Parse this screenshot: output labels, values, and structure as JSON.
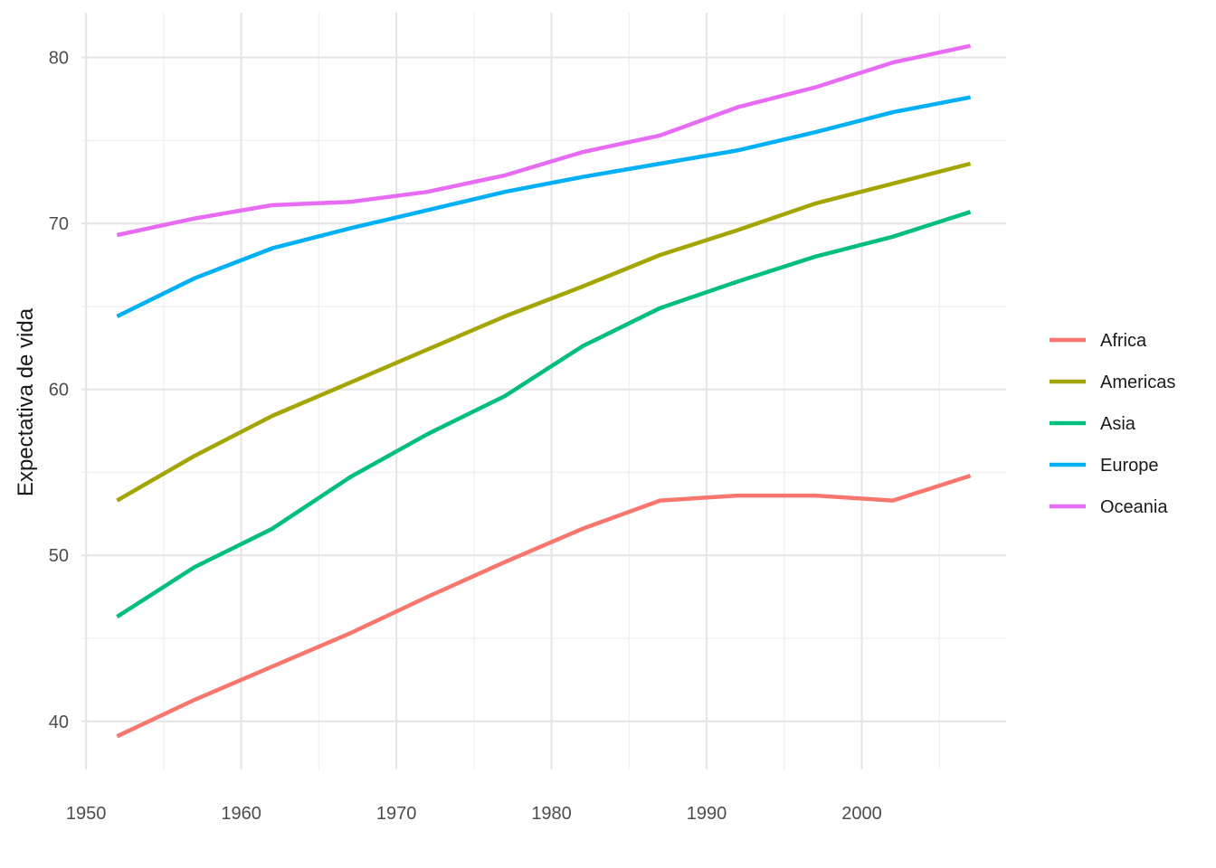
{
  "chart_data": {
    "type": "line",
    "title": "",
    "xlabel": "",
    "ylabel": "Expectativa de vida",
    "x": [
      1952,
      1957,
      1962,
      1967,
      1972,
      1977,
      1982,
      1987,
      1992,
      1997,
      2002,
      2007
    ],
    "xlim": [
      1949.7,
      2009.3
    ],
    "ylim": [
      37.1,
      82.7
    ],
    "x_ticks": [
      1950,
      1960,
      1970,
      1980,
      1990,
      2000
    ],
    "x_tick_labels": [
      "1950",
      "1960",
      "1970",
      "1980",
      "1990",
      "2000"
    ],
    "y_ticks": [
      40,
      50,
      60,
      70,
      80
    ],
    "y_tick_labels": [
      "40",
      "50",
      "60",
      "70",
      "80"
    ],
    "grid": true,
    "legend_position": "right",
    "series": [
      {
        "name": "Africa",
        "color": "#F8766D",
        "values": [
          39.1,
          41.3,
          43.3,
          45.3,
          47.5,
          49.6,
          51.6,
          53.3,
          53.6,
          53.6,
          53.3,
          54.8
        ]
      },
      {
        "name": "Americas",
        "color": "#A3A500",
        "values": [
          53.3,
          56.0,
          58.4,
          60.4,
          62.4,
          64.4,
          66.2,
          68.1,
          69.6,
          71.2,
          72.4,
          73.6
        ]
      },
      {
        "name": "Asia",
        "color": "#00BF7D",
        "values": [
          46.3,
          49.3,
          51.6,
          54.7,
          57.3,
          59.6,
          62.6,
          64.9,
          66.5,
          68.0,
          69.2,
          70.7
        ]
      },
      {
        "name": "Europe",
        "color": "#00B0F6",
        "values": [
          64.4,
          66.7,
          68.5,
          69.7,
          70.8,
          71.9,
          72.8,
          73.6,
          74.4,
          75.5,
          76.7,
          77.6
        ]
      },
      {
        "name": "Oceania",
        "color": "#E76BF3",
        "values": [
          69.3,
          70.3,
          71.1,
          71.3,
          71.9,
          72.9,
          74.3,
          75.3,
          77.0,
          78.2,
          79.7,
          80.7
        ]
      }
    ]
  }
}
